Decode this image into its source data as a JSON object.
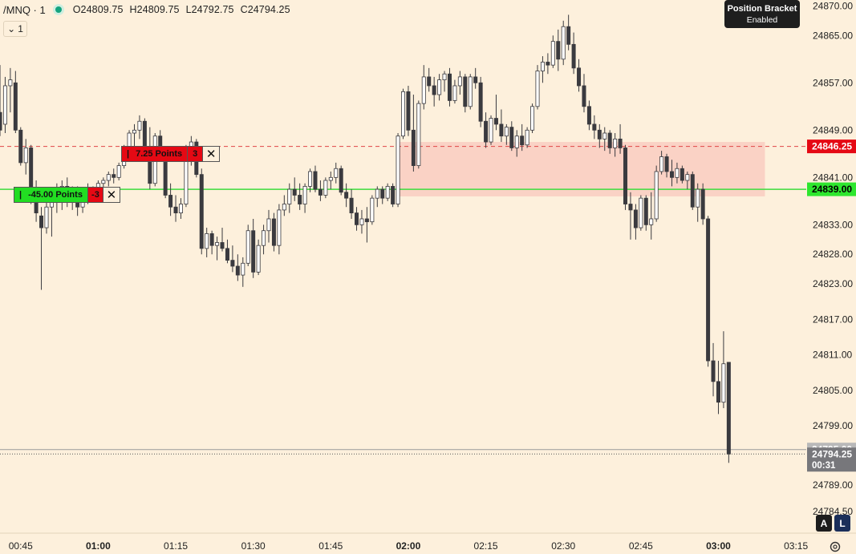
{
  "header": {
    "symbol": "/MNQ · 1",
    "open": "O24809.75",
    "high": "H24809.75",
    "low": "L24792.75",
    "close": "C24794.25",
    "collapse_label": "1"
  },
  "position_bracket": {
    "title": "Position Bracket",
    "status": "Enabled"
  },
  "orders": [
    {
      "name": "take-profit",
      "text": "7.25 Points",
      "qty": "3",
      "price": 24846.25,
      "color": "#e50914"
    },
    {
      "name": "stop-loss",
      "text": "-45.00 Points",
      "qty": "-3",
      "price": 24839.0,
      "color": "#22dd22"
    }
  ],
  "buttons": {
    "auto": "A",
    "log": "L"
  },
  "colors": {
    "background": "#fdf0dc",
    "up_candle": "#ffffff",
    "down_candle": "#3a3a3f",
    "bracket_zone": "#f7b9b2",
    "stop_line": "#3ddc3d",
    "target_line": "#e04545"
  },
  "chart_data": {
    "type": "candlestick",
    "symbol": "/MNQ",
    "interval": "1",
    "ylim": [
      24781,
      24871
    ],
    "y_ticks": [
      24870.0,
      24865.0,
      24857.0,
      24849.0,
      24841.0,
      24833.0,
      24828.0,
      24823.0,
      24817.0,
      24811.0,
      24805.0,
      24799.0,
      24789.0,
      24784.5
    ],
    "y_tick_labels": [
      "24870.00",
      "24865.00",
      "24857.00",
      "24849.00",
      "24841.00",
      "24833.00",
      "24828.00",
      "24823.00",
      "24817.00",
      "24811.00",
      "24805.00",
      "24799.00",
      "24789.00",
      "24784.50"
    ],
    "x_start": "00:41",
    "x_end": "03:17",
    "x_ticks": [
      {
        "time": "00:45",
        "label": "00:45",
        "bold": false
      },
      {
        "time": "01:00",
        "label": "01:00",
        "bold": true
      },
      {
        "time": "01:15",
        "label": "01:15",
        "bold": false
      },
      {
        "time": "01:30",
        "label": "01:30",
        "bold": false
      },
      {
        "time": "01:45",
        "label": "01:45",
        "bold": false
      },
      {
        "time": "02:00",
        "label": "02:00",
        "bold": true
      },
      {
        "time": "02:15",
        "label": "02:15",
        "bold": false
      },
      {
        "time": "02:30",
        "label": "02:30",
        "bold": false
      },
      {
        "time": "02:45",
        "label": "02:45",
        "bold": false
      },
      {
        "time": "03:00",
        "label": "03:00",
        "bold": true
      },
      {
        "time": "03:15",
        "label": "03:15",
        "bold": false
      }
    ],
    "price_tags": [
      {
        "name": "target",
        "label": "24846.25",
        "price": 24846.25,
        "bg": "#e50914",
        "fg": "#ffffff"
      },
      {
        "name": "stop",
        "label": "24839.00",
        "price": 24839.0,
        "bg": "#2ee62e",
        "fg": "#000000"
      },
      {
        "name": "prev",
        "label": "24795.00",
        "price": 24795.0,
        "bg": "#b9b9b9",
        "fg": "#ffffff"
      },
      {
        "name": "last",
        "label": "24794.25",
        "sub": "00:31",
        "price": 24794.25,
        "bg": "#77777b",
        "fg": "#ffffff"
      }
    ],
    "lines": [
      {
        "name": "target-line",
        "price": 24846.25,
        "style": "dashed",
        "color": "#e04545"
      },
      {
        "name": "stop-line",
        "price": 24839.0,
        "style": "solid",
        "color": "#3ddc3d"
      },
      {
        "name": "prev-close-line",
        "price": 24795.0,
        "style": "solid",
        "color": "#999999"
      },
      {
        "name": "last-price-line",
        "price": 24794.25,
        "style": "dotted",
        "color": "#555555"
      }
    ],
    "bracket_zone": {
      "price_top": 24847.0,
      "price_bottom": 24837.8,
      "time_start": "01:58",
      "time_end": "03:09"
    },
    "candles": [
      [
        "00:41",
        24852.0,
        24860.0,
        24848.0,
        24849.0
      ],
      [
        "00:42",
        24850.0,
        24858.0,
        24848.5,
        24856.5
      ],
      [
        "00:43",
        24856.5,
        24859.5,
        24852.0,
        24857.5
      ],
      [
        "00:44",
        24857.0,
        24859.0,
        24848.5,
        24849.0
      ],
      [
        "00:45",
        24849.0,
        24849.5,
        24843.0,
        24843.5
      ],
      [
        "00:46",
        24843.5,
        24847.5,
        24841.5,
        24846.0
      ],
      [
        "00:47",
        24846.0,
        24846.5,
        24836.5,
        24838.0
      ],
      [
        "00:48",
        24838.5,
        24840.5,
        24833.5,
        24835.0
      ],
      [
        "00:49",
        24834.5,
        24836.0,
        24822.0,
        24832.5
      ],
      [
        "00:50",
        24832.5,
        24837.0,
        24831.5,
        24836.0
      ],
      [
        "00:51",
        24836.0,
        24838.5,
        24831.0,
        24837.5
      ],
      [
        "00:52",
        24837.5,
        24840.0,
        24835.0,
        24838.5
      ],
      [
        "00:53",
        24838.5,
        24840.5,
        24835.5,
        24839.5
      ],
      [
        "00:54",
        24839.5,
        24841.0,
        24836.0,
        24837.0
      ],
      [
        "00:55",
        24837.0,
        24839.5,
        24835.5,
        24838.5
      ],
      [
        "00:56",
        24838.5,
        24839.5,
        24834.5,
        24836.0
      ],
      [
        "00:57",
        24836.0,
        24839.0,
        24835.0,
        24838.0
      ],
      [
        "00:58",
        24838.0,
        24840.0,
        24836.5,
        24839.0
      ],
      [
        "00:59",
        24839.0,
        24839.5,
        24837.5,
        24838.5
      ],
      [
        "01:00",
        24838.5,
        24840.5,
        24837.0,
        24840.0
      ],
      [
        "01:01",
        24840.0,
        24841.0,
        24838.5,
        24840.5
      ],
      [
        "01:02",
        24840.5,
        24842.0,
        24839.5,
        24841.5
      ],
      [
        "01:03",
        24841.5,
        24842.5,
        24840.0,
        24841.0
      ],
      [
        "01:04",
        24841.0,
        24843.5,
        24840.5,
        24843.0
      ],
      [
        "01:05",
        24843.0,
        24846.5,
        24842.5,
        24846.0
      ],
      [
        "01:06",
        24846.0,
        24849.0,
        24844.5,
        24848.5
      ],
      [
        "01:07",
        24848.5,
        24850.0,
        24846.0,
        24849.0
      ],
      [
        "01:08",
        24849.0,
        24851.5,
        24847.5,
        24850.5
      ],
      [
        "01:09",
        24850.5,
        24851.0,
        24845.0,
        24845.5
      ],
      [
        "01:10",
        24845.5,
        24849.5,
        24839.0,
        24840.0
      ],
      [
        "01:11",
        24840.0,
        24848.5,
        24839.5,
        24848.0
      ],
      [
        "01:12",
        24848.0,
        24849.0,
        24844.0,
        24844.5
      ],
      [
        "01:13",
        24844.5,
        24846.0,
        24837.5,
        24838.0
      ],
      [
        "01:14",
        24838.0,
        24840.0,
        24834.5,
        24836.0
      ],
      [
        "01:15",
        24836.0,
        24838.0,
        24833.5,
        24835.0
      ],
      [
        "01:16",
        24835.0,
        24837.5,
        24834.0,
        24836.5
      ],
      [
        "01:17",
        24836.5,
        24846.5,
        24836.0,
        24846.0
      ],
      [
        "01:18",
        24846.0,
        24848.0,
        24843.0,
        24847.0
      ],
      [
        "01:19",
        24847.0,
        24847.5,
        24841.0,
        24841.5
      ],
      [
        "01:20",
        24841.5,
        24842.5,
        24828.0,
        24829.0
      ],
      [
        "01:21",
        24829.0,
        24832.5,
        24827.5,
        24831.5
      ],
      [
        "01:22",
        24831.5,
        24832.0,
        24828.0,
        24829.5
      ],
      [
        "01:23",
        24829.5,
        24831.0,
        24827.0,
        24830.0
      ],
      [
        "01:24",
        24830.0,
        24832.5,
        24828.5,
        24829.0
      ],
      [
        "01:25",
        24829.0,
        24830.5,
        24826.5,
        24827.0
      ],
      [
        "01:26",
        24827.0,
        24829.5,
        24825.0,
        24826.0
      ],
      [
        "01:27",
        24826.0,
        24828.0,
        24823.5,
        24824.5
      ],
      [
        "01:28",
        24824.5,
        24827.5,
        24822.5,
        24826.5
      ],
      [
        "01:29",
        24826.5,
        24833.0,
        24826.0,
        24832.0
      ],
      [
        "01:30",
        24832.0,
        24834.0,
        24824.0,
        24825.0
      ],
      [
        "01:31",
        24825.0,
        24830.5,
        24824.5,
        24829.5
      ],
      [
        "01:32",
        24829.5,
        24833.0,
        24828.0,
        24832.0
      ],
      [
        "01:33",
        24832.0,
        24835.5,
        24830.0,
        24834.0
      ],
      [
        "01:34",
        24834.0,
        24835.0,
        24828.5,
        24829.5
      ],
      [
        "01:35",
        24829.5,
        24836.5,
        24828.0,
        24835.5
      ],
      [
        "01:36",
        24835.5,
        24838.0,
        24834.5,
        24836.5
      ],
      [
        "01:37",
        24836.5,
        24840.0,
        24835.0,
        24839.0
      ],
      [
        "01:38",
        24839.0,
        24841.0,
        24837.0,
        24838.0
      ],
      [
        "01:39",
        24838.0,
        24840.0,
        24835.5,
        24836.5
      ],
      [
        "01:40",
        24836.5,
        24840.0,
        24835.0,
        24839.5
      ],
      [
        "01:41",
        24839.5,
        24842.5,
        24838.5,
        24842.0
      ],
      [
        "01:42",
        24842.0,
        24843.0,
        24838.5,
        24839.0
      ],
      [
        "01:43",
        24839.0,
        24840.5,
        24837.0,
        24838.0
      ],
      [
        "01:44",
        24838.0,
        24841.0,
        24837.5,
        24840.5
      ],
      [
        "01:45",
        24840.5,
        24842.0,
        24839.0,
        24841.0
      ],
      [
        "01:46",
        24841.0,
        24843.5,
        24840.0,
        24842.5
      ],
      [
        "01:47",
        24842.5,
        24843.0,
        24838.0,
        24838.5
      ],
      [
        "01:48",
        24838.5,
        24840.0,
        24836.0,
        24837.5
      ],
      [
        "01:49",
        24837.5,
        24839.0,
        24834.0,
        24835.0
      ],
      [
        "01:50",
        24835.0,
        24836.0,
        24832.0,
        24833.0
      ],
      [
        "01:51",
        24833.0,
        24835.5,
        24831.5,
        24834.0
      ],
      [
        "01:52",
        24834.0,
        24836.0,
        24830.0,
        24833.5
      ],
      [
        "01:53",
        24833.5,
        24838.0,
        24833.0,
        24837.5
      ],
      [
        "01:54",
        24837.5,
        24839.5,
        24836.0,
        24839.0
      ],
      [
        "01:55",
        24839.0,
        24839.5,
        24836.5,
        24837.5
      ],
      [
        "01:56",
        24837.5,
        24840.0,
        24837.0,
        24839.5
      ],
      [
        "01:57",
        24839.5,
        24840.0,
        24836.0,
        24836.5
      ],
      [
        "01:58",
        24836.5,
        24848.5,
        24836.0,
        24848.0
      ],
      [
        "01:59",
        24848.0,
        24856.0,
        24847.5,
        24855.5
      ],
      [
        "02:00",
        24855.5,
        24856.5,
        24848.0,
        24849.0
      ],
      [
        "02:01",
        24849.0,
        24855.0,
        24842.0,
        24843.0
      ],
      [
        "02:02",
        24843.0,
        24854.0,
        24842.5,
        24853.5
      ],
      [
        "02:03",
        24853.5,
        24860.0,
        24852.5,
        24858.0
      ],
      [
        "02:04",
        24858.0,
        24859.5,
        24855.5,
        24856.5
      ],
      [
        "02:05",
        24856.5,
        24858.0,
        24853.0,
        24855.0
      ],
      [
        "02:06",
        24855.0,
        24858.5,
        24854.0,
        24857.5
      ],
      [
        "02:07",
        24857.5,
        24859.0,
        24855.5,
        24858.5
      ],
      [
        "02:08",
        24858.5,
        24859.5,
        24853.0,
        24854.0
      ],
      [
        "02:09",
        24854.0,
        24857.5,
        24853.5,
        24856.5
      ],
      [
        "02:10",
        24856.5,
        24859.0,
        24855.0,
        24858.0
      ],
      [
        "02:11",
        24858.0,
        24858.5,
        24852.0,
        24853.0
      ],
      [
        "02:12",
        24853.0,
        24858.5,
        24852.5,
        24858.0
      ],
      [
        "02:13",
        24858.0,
        24859.5,
        24856.0,
        24857.0
      ],
      [
        "02:14",
        24857.0,
        24858.0,
        24849.5,
        24850.5
      ],
      [
        "02:15",
        24850.5,
        24852.0,
        24846.0,
        24847.0
      ],
      [
        "02:16",
        24847.0,
        24851.5,
        24846.5,
        24851.0
      ],
      [
        "02:17",
        24851.0,
        24855.0,
        24849.0,
        24850.0
      ],
      [
        "02:18",
        24850.0,
        24852.5,
        24847.0,
        24848.0
      ],
      [
        "02:19",
        24848.0,
        24850.0,
        24846.5,
        24849.5
      ],
      [
        "02:20",
        24849.5,
        24850.5,
        24845.5,
        24846.0
      ],
      [
        "02:21",
        24846.0,
        24849.0,
        24844.5,
        24848.0
      ],
      [
        "02:22",
        24848.0,
        24850.0,
        24845.5,
        24846.5
      ],
      [
        "02:23",
        24846.5,
        24849.5,
        24846.0,
        24849.0
      ],
      [
        "02:24",
        24849.0,
        24853.5,
        24848.5,
        24853.0
      ],
      [
        "02:25",
        24853.0,
        24860.0,
        24852.5,
        24859.0
      ],
      [
        "02:26",
        24859.0,
        24861.5,
        24857.0,
        24860.5
      ],
      [
        "02:27",
        24860.5,
        24862.0,
        24858.5,
        24860.0
      ],
      [
        "02:28",
        24860.0,
        24865.0,
        24859.5,
        24864.0
      ],
      [
        "02:29",
        24864.0,
        24866.0,
        24859.0,
        24861.0
      ],
      [
        "02:30",
        24861.0,
        24867.5,
        24860.0,
        24866.5
      ],
      [
        "02:31",
        24866.5,
        24868.5,
        24862.5,
        24863.5
      ],
      [
        "02:32",
        24863.5,
        24865.5,
        24858.5,
        24859.5
      ],
      [
        "02:33",
        24859.5,
        24861.0,
        24855.5,
        24856.5
      ],
      [
        "02:34",
        24856.5,
        24858.5,
        24852.0,
        24853.0
      ],
      [
        "02:35",
        24853.0,
        24854.0,
        24849.0,
        24850.0
      ],
      [
        "02:36",
        24850.0,
        24851.5,
        24847.5,
        24849.0
      ],
      [
        "02:37",
        24849.0,
        24850.0,
        24846.0,
        24847.5
      ],
      [
        "02:38",
        24847.5,
        24849.5,
        24845.5,
        24848.5
      ],
      [
        "02:39",
        24848.5,
        24849.0,
        24845.0,
        24846.0
      ],
      [
        "02:40",
        24846.0,
        24848.5,
        24844.5,
        24847.5
      ],
      [
        "02:41",
        24847.5,
        24850.0,
        24845.0,
        24846.0
      ],
      [
        "02:42",
        24846.0,
        24846.5,
        24835.5,
        24836.5
      ],
      [
        "02:43",
        24836.5,
        24838.5,
        24830.5,
        24835.5
      ],
      [
        "02:44",
        24835.5,
        24836.5,
        24830.5,
        24832.5
      ],
      [
        "02:45",
        24832.5,
        24838.0,
        24832.0,
        24837.5
      ],
      [
        "02:46",
        24837.5,
        24838.0,
        24832.0,
        24833.0
      ],
      [
        "02:47",
        24833.0,
        24838.5,
        24830.5,
        24834.0
      ],
      [
        "02:48",
        24834.0,
        24843.0,
        24833.5,
        24842.0
      ],
      [
        "02:49",
        24842.0,
        24845.5,
        24841.5,
        24844.5
      ],
      [
        "02:50",
        24844.5,
        24845.0,
        24841.0,
        24842.0
      ],
      [
        "02:51",
        24842.0,
        24844.0,
        24839.5,
        24841.0
      ],
      [
        "02:52",
        24841.0,
        24843.5,
        24840.0,
        24842.5
      ],
      [
        "02:53",
        24842.5,
        24843.0,
        24840.0,
        24840.5
      ],
      [
        "02:54",
        24840.5,
        24842.0,
        24839.0,
        24841.5
      ],
      [
        "02:55",
        24841.5,
        24842.0,
        24835.5,
        24836.0
      ],
      [
        "02:56",
        24836.0,
        24840.0,
        24833.5,
        24839.0
      ],
      [
        "02:57",
        24839.0,
        24840.0,
        24833.0,
        24834.0
      ],
      [
        "02:58",
        24834.0,
        24834.5,
        24809.0,
        24810.0
      ],
      [
        "02:59",
        24810.0,
        24813.0,
        24804.0,
        24806.5
      ],
      [
        "03:00",
        24806.5,
        24810.0,
        24801.0,
        24803.0
      ],
      [
        "03:01",
        24803.0,
        24815.0,
        24802.0,
        24809.5
      ],
      [
        "03:02",
        24809.75,
        24809.75,
        24792.75,
        24794.25
      ]
    ]
  }
}
